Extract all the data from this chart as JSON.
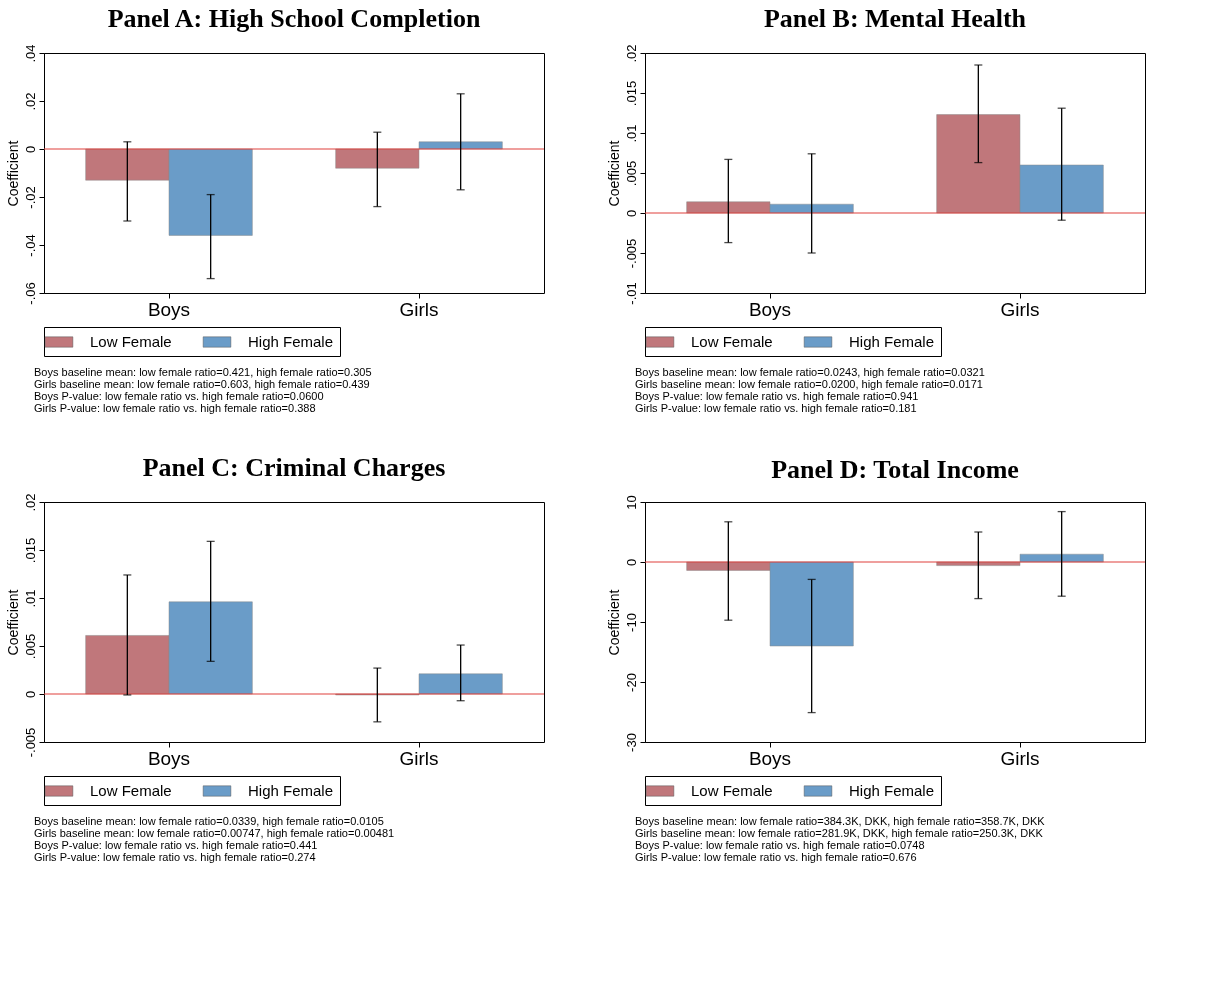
{
  "chart_data": [
    {
      "type": "bar",
      "title": "Panel A: High School Completion",
      "ylabel": "Coefficient",
      "categories": [
        "Boys",
        "Girls"
      ],
      "series": [
        {
          "name": "Low Female",
          "color": "#c0777b",
          "values": [
            -0.013,
            -0.008
          ],
          "errors": [
            [
              -0.03,
              0.003
            ],
            [
              -0.024,
              0.007
            ]
          ]
        },
        {
          "name": "High Female",
          "color": "#6a9cc8",
          "values": [
            -0.036,
            0.003
          ],
          "errors": [
            [
              -0.054,
              -0.019
            ],
            [
              -0.017,
              0.023
            ]
          ]
        }
      ],
      "ylim": [
        -0.06,
        0.04
      ],
      "yticks": [
        {
          "value": -0.06,
          "label": "-.06"
        },
        {
          "value": -0.04,
          "label": "-.04"
        },
        {
          "value": -0.02,
          "label": "-.02"
        },
        0,
        {
          "value": 0.02,
          "label": ".02"
        },
        {
          "value": 0.04,
          "label": ".04"
        }
      ],
      "ref_lines": [
        {
          "axis": "y",
          "value": 0,
          "color": "#e0413c"
        }
      ],
      "legend": "bottom",
      "grid": false,
      "annotations": [
        "Boys baseline mean: low female ratio=0.421, high female ratio=0.305",
        "Girls baseline mean: low female ratio=0.603, high female ratio=0.439",
        "Boys P-value: low female ratio vs. high female ratio=0.0600",
        "Girls P-value: low female ratio vs. high female ratio=0.388"
      ]
    },
    {
      "type": "bar",
      "title": "Panel B: Mental Health",
      "ylabel": "Coefficient",
      "categories": [
        "Boys",
        "Girls"
      ],
      "series": [
        {
          "name": "Low Female",
          "color": "#c0777b",
          "values": [
            0.0014,
            0.0123
          ],
          "errors": [
            [
              -0.0037,
              0.0067
            ],
            [
              0.0063,
              0.0185
            ]
          ]
        },
        {
          "name": "High Female",
          "color": "#6a9cc8",
          "values": [
            0.0011,
            0.006
          ],
          "errors": [
            [
              -0.005,
              0.0074
            ],
            [
              -0.0009,
              0.0131
            ]
          ]
        }
      ],
      "ylim": [
        -0.01,
        0.02
      ],
      "yticks": [
        {
          "value": -0.01,
          "label": "-.01"
        },
        {
          "value": -0.005,
          "label": "-.005"
        },
        0,
        {
          "value": 0.005,
          "label": ".005"
        },
        {
          "value": 0.01,
          "label": ".01"
        },
        {
          "value": 0.015,
          "label": ".015"
        },
        {
          "value": 0.02,
          "label": ".02"
        }
      ],
      "ref_lines": [
        {
          "axis": "y",
          "value": 0,
          "color": "#e0413c"
        }
      ],
      "legend": "bottom",
      "grid": false,
      "annotations": [
        "Boys baseline mean: low female ratio=0.0243, high female ratio=0.0321",
        "Girls baseline mean: low female ratio=0.0200, high female ratio=0.0171",
        "Boys P-value: low female ratio vs. high female ratio=0.941",
        "Girls P-value: low female ratio vs. high female ratio=0.181"
      ]
    },
    {
      "type": "bar",
      "title": "Panel C: Criminal Charges",
      "ylabel": "Coefficient",
      "categories": [
        "Boys",
        "Girls"
      ],
      "series": [
        {
          "name": "Low Female",
          "color": "#c0777b",
          "values": [
            0.0061,
            -0.0001
          ],
          "errors": [
            [
              -0.0001,
              0.0124
            ],
            [
              -0.0029,
              0.0027
            ]
          ]
        },
        {
          "name": "High Female",
          "color": "#6a9cc8",
          "values": [
            0.0096,
            0.0021
          ],
          "errors": [
            [
              0.0034,
              0.0159
            ],
            [
              -0.0007,
              0.0051
            ]
          ]
        }
      ],
      "ylim": [
        -0.005,
        0.02
      ],
      "yticks": [
        {
          "value": -0.005,
          "label": "-.005"
        },
        0,
        {
          "value": 0.005,
          "label": ".005"
        },
        {
          "value": 0.01,
          "label": ".01"
        },
        {
          "value": 0.015,
          "label": ".015"
        },
        {
          "value": 0.02,
          "label": ".02"
        }
      ],
      "ref_lines": [
        {
          "axis": "y",
          "value": 0,
          "color": "#e0413c"
        }
      ],
      "legend": "bottom",
      "grid": false,
      "annotations": [
        "Boys baseline mean: low female ratio=0.0339, high female ratio=0.0105",
        "Girls baseline mean: low female ratio=0.00747, high female ratio=0.00481",
        "Boys P-value: low female ratio vs. high female ratio=0.441",
        "Girls P-value: low female ratio vs. high female ratio=0.274"
      ]
    },
    {
      "type": "bar",
      "title": "Panel D: Total Income",
      "ylabel": "Coefficient",
      "categories": [
        "Boys",
        "Girls"
      ],
      "series": [
        {
          "name": "Low Female",
          "color": "#c0777b",
          "values": [
            -1.4,
            -0.6
          ],
          "errors": [
            [
              -9.7,
              6.7
            ],
            [
              -6.1,
              5.0
            ]
          ]
        },
        {
          "name": "High Female",
          "color": "#6a9cc8",
          "values": [
            -14.0,
            1.3
          ],
          "errors": [
            [
              -25.1,
              -2.9
            ],
            [
              -5.7,
              8.4
            ]
          ]
        }
      ],
      "ylim": [
        -30,
        10
      ],
      "yticks": [
        -30,
        -20,
        -10,
        0,
        10
      ],
      "ref_lines": [
        {
          "axis": "y",
          "value": 0,
          "color": "#e0413c"
        }
      ],
      "legend": "bottom",
      "grid": false,
      "annotations": [
        "Boys baseline mean: low female ratio=384.3K, DKK, high female ratio=358.7K, DKK",
        "Girls baseline mean: low female ratio=281.9K, DKK, high female ratio=250.3K, DKK",
        "Boys P-value: low female ratio vs. high female ratio=0.0748",
        "Girls P-value: low female ratio vs. high female ratio=0.676"
      ]
    }
  ]
}
